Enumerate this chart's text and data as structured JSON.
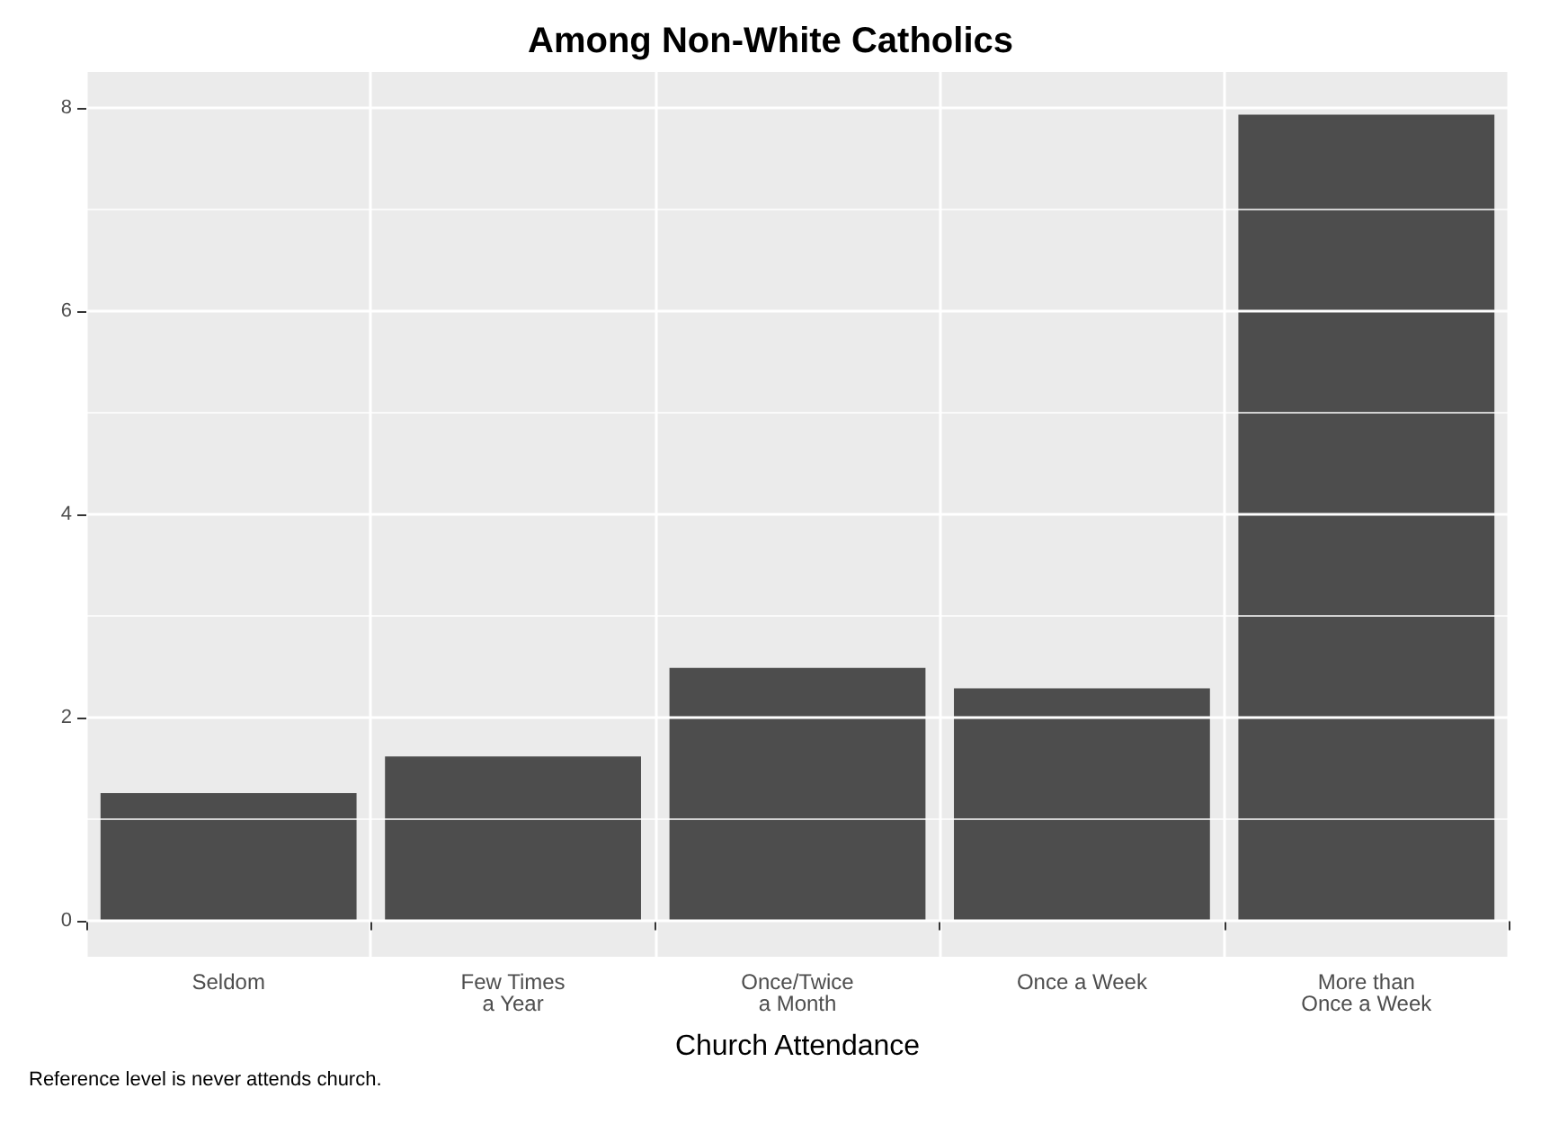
{
  "chart_data": {
    "type": "bar",
    "title": "Among Non-White Catholics",
    "xlabel": "Church Attendance",
    "categories": [
      "Seldom",
      "Few Times\na Year",
      "Once/Twice\na Month",
      "Once a Week",
      "More than\nOnce a Week"
    ],
    "values": [
      1.26,
      1.62,
      2.49,
      2.29,
      7.93
    ],
    "color": "#4d4d4d",
    "ylim": [
      -0.35,
      8.35
    ],
    "yticks": [
      0,
      2,
      4,
      6,
      8
    ],
    "grid": true,
    "annotations": [
      "Reference level is never attends church."
    ]
  }
}
